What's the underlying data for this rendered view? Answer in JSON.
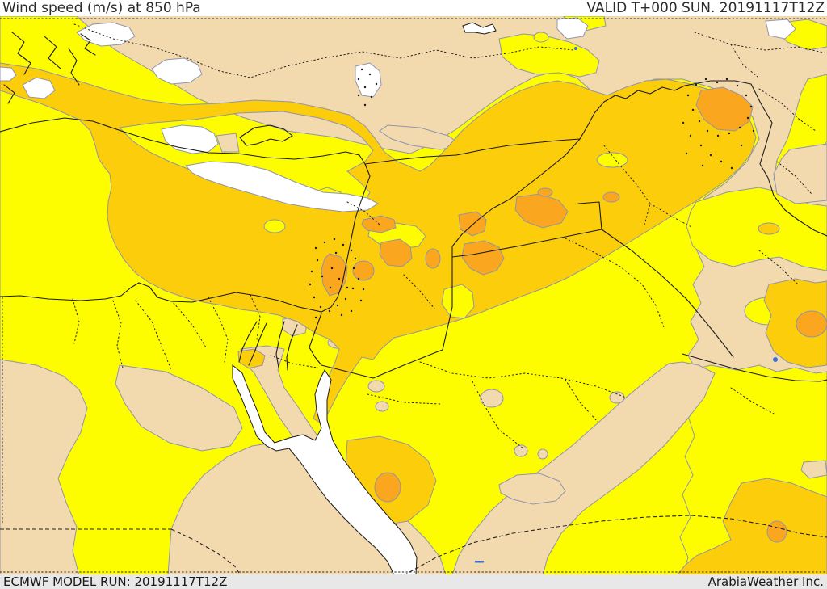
{
  "header": {
    "title": "Wind speed (m/s) at 850 hPa",
    "valid": "VALID T+000 SUN. 20191117T12Z"
  },
  "footer": {
    "model_run": "ECMWF MODEL RUN: 20191117T12Z",
    "provider": "ArabiaWeather Inc."
  },
  "map": {
    "parameter": "Wind speed",
    "units": "m/s",
    "level": "850 hPa",
    "model": "ECMWF",
    "palette": {
      "calm_white": "#ffffff",
      "light_beige": "#f3d9ae",
      "moderate_yellow": "#fdfd00",
      "strong_gold": "#fbcd0a",
      "very_strong_orange": "#faa61e",
      "contour_line": "#9095ab",
      "border_line": "#1a1a1a",
      "water_blue": "#3a6fd8"
    }
  }
}
